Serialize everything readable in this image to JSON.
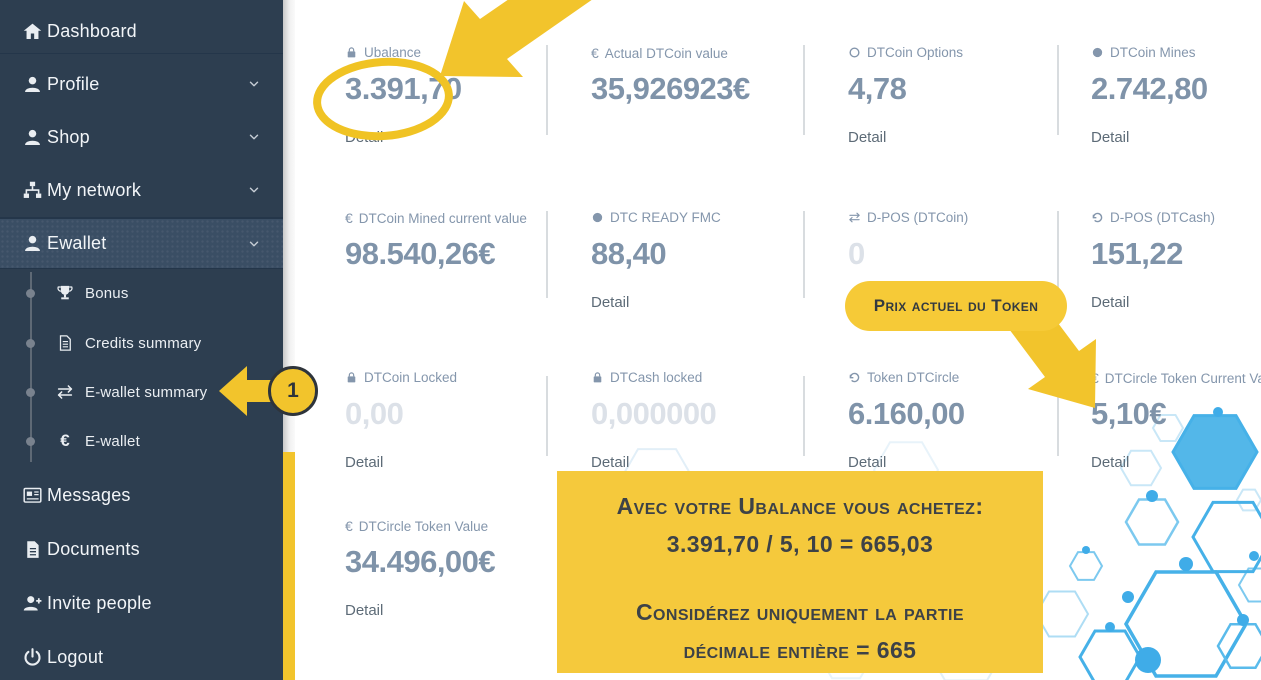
{
  "sidebar": {
    "items": [
      {
        "label": "Dashboard",
        "icon": "home-icon",
        "chevron": false,
        "sub": false,
        "active": false
      },
      {
        "label": "Profile",
        "icon": "user-icon",
        "chevron": true,
        "sub": false,
        "active": false
      },
      {
        "label": "Shop",
        "icon": "user-icon",
        "chevron": true,
        "sub": false,
        "active": false
      },
      {
        "label": "My network",
        "icon": "network-icon",
        "chevron": true,
        "sub": false,
        "active": false
      },
      {
        "label": "Ewallet",
        "icon": "user-icon",
        "chevron": true,
        "sub": false,
        "active": true
      },
      {
        "label": "Bonus",
        "icon": "trophy-icon",
        "chevron": false,
        "sub": true,
        "active": false
      },
      {
        "label": "Credits summary",
        "icon": "file-icon",
        "chevron": false,
        "sub": true,
        "active": false
      },
      {
        "label": "E-wallet summary",
        "icon": "exchange-icon",
        "chevron": false,
        "sub": true,
        "active": false
      },
      {
        "label": "E-wallet",
        "icon": "euro-icon",
        "chevron": false,
        "sub": true,
        "active": false
      },
      {
        "label": "Messages",
        "icon": "newspaper-icon",
        "chevron": false,
        "sub": false,
        "active": false
      },
      {
        "label": "Documents",
        "icon": "document-icon",
        "chevron": false,
        "sub": false,
        "active": false
      },
      {
        "label": "Invite people",
        "icon": "user-plus-icon",
        "chevron": false,
        "sub": false,
        "active": false
      },
      {
        "label": "Logout",
        "icon": "power-icon",
        "chevron": false,
        "sub": false,
        "active": false
      }
    ]
  },
  "cards": [
    {
      "label": "Ubalance",
      "icon": "lock-icon",
      "value": "3.391,70",
      "faded": false,
      "detail": "Detail"
    },
    {
      "label": "Actual DTCoin value",
      "icon": "euro-icon",
      "value": "35,926923€",
      "faded": false,
      "detail": null
    },
    {
      "label": "DTCoin Options",
      "icon": "circle-outline-icon",
      "value": "4,78",
      "faded": false,
      "detail": "Detail"
    },
    {
      "label": "DTCoin Mines",
      "icon": "circle-filled-icon",
      "value": "2.742,80",
      "faded": false,
      "detail": "Detail"
    },
    {
      "label": "DTCoin Mined current value",
      "icon": "euro-icon",
      "value": "98.540,26€",
      "faded": false,
      "detail": null
    },
    {
      "label": "DTC READY FMC",
      "icon": "circle-filled-icon",
      "value": "88,40",
      "faded": false,
      "detail": "Detail"
    },
    {
      "label": "D-POS (DTCoin)",
      "icon": "exchange-icon",
      "value": "0",
      "faded": true,
      "detail": null
    },
    {
      "label": "D-POS (DTCash)",
      "icon": "refresh-icon",
      "value": "151,22",
      "faded": false,
      "detail": "Detail"
    },
    {
      "label": "DTCoin Locked",
      "icon": "lock-icon",
      "value": "0,00",
      "faded": true,
      "detail": "Detail"
    },
    {
      "label": "DTCash locked",
      "icon": "lock-icon",
      "value": "0,000000",
      "faded": true,
      "detail": "Detail"
    },
    {
      "label": "Token DTCircle",
      "icon": "refresh-icon",
      "value": "6.160,00",
      "faded": false,
      "detail": "Detail"
    },
    {
      "label": "DTCircle Token Current Value",
      "icon": "euro-icon",
      "value": "5,10€",
      "faded": false,
      "detail": "Detail"
    },
    {
      "label": "DTCircle Token Value",
      "icon": "euro-icon",
      "value": "34.496,00€",
      "faded": false,
      "detail": "Detail"
    }
  ],
  "annotations": {
    "step_badge": "1",
    "token_price_callout": "Prix actuel du Token",
    "info_line1": "Avec votre Ubalance vous achetez:",
    "info_line2": "3.391,70 / 5, 10 = 665,03",
    "info_line3": "Considérez uniquement la partie",
    "info_line4": "décimale entière = 665"
  },
  "colors": {
    "annotation_yellow": "#F2C42C",
    "callout_yellow": "#F6CA37",
    "info_box_yellow": "#F5C93C",
    "sidebar_bg": "#2D3E50",
    "accent_blue": "#46B1E8",
    "value_gray_blue": "#7F93A9"
  }
}
